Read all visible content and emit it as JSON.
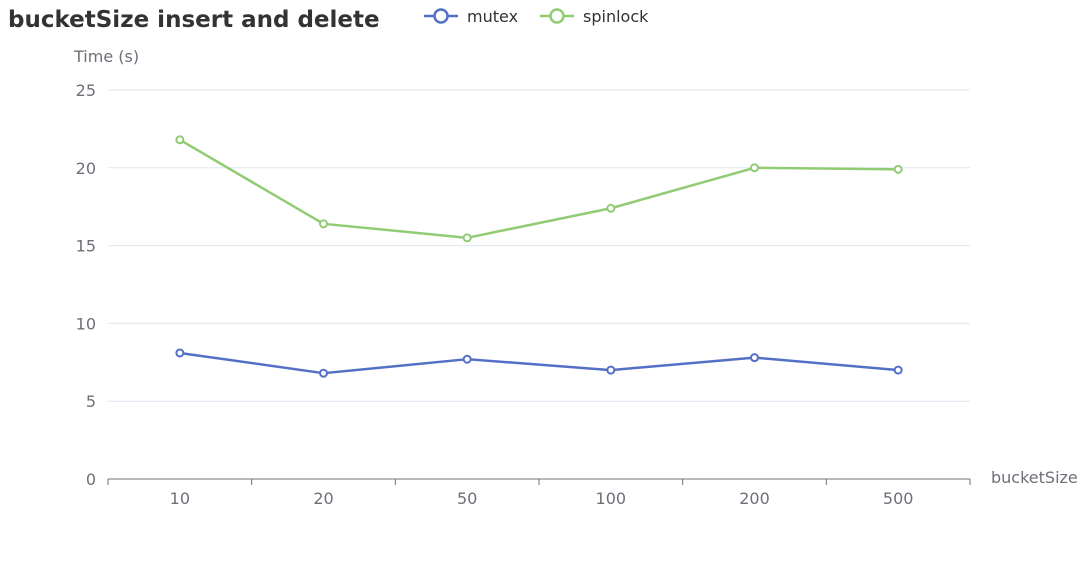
{
  "chart_data": {
    "type": "line",
    "title": "bucketSize insert and delete",
    "xlabel": "bucketSize",
    "ylabel": "Time (s)",
    "categories": [
      "10",
      "20",
      "50",
      "100",
      "200",
      "500"
    ],
    "ylim": [
      0,
      25
    ],
    "yticks": [
      0,
      5,
      10,
      15,
      20,
      25
    ],
    "grid": true,
    "legend_position": "top",
    "series": [
      {
        "name": "mutex",
        "color": "#5470c6",
        "values": [
          8.1,
          6.8,
          7.7,
          7.0,
          7.8,
          7.0
        ]
      },
      {
        "name": "spinlock",
        "color": "#91cc75",
        "values": [
          21.8,
          16.4,
          15.5,
          17.4,
          20.0,
          19.9
        ]
      }
    ]
  }
}
